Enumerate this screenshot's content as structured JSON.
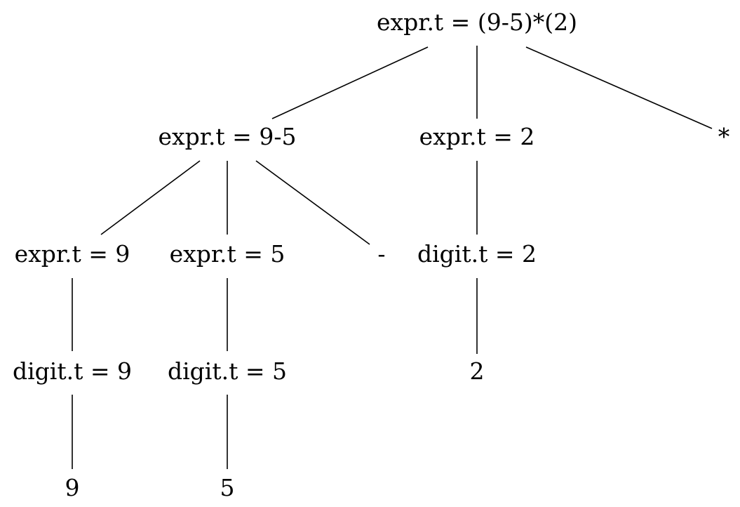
{
  "tree": {
    "nodes": {
      "root": "expr.t = (9-5)*(2)",
      "sub_minus": "expr.t = 9-5",
      "sub_two": "expr.t = 2",
      "star": "*",
      "expr_nine": "expr.t = 9",
      "expr_five": "expr.t = 5",
      "minus": "-",
      "digit_two": "digit.t = 2",
      "digit_nine": "digit.t = 9",
      "digit_five": "digit.t = 5",
      "leaf_two": "2",
      "leaf_nine": "9",
      "leaf_five": "5"
    }
  }
}
